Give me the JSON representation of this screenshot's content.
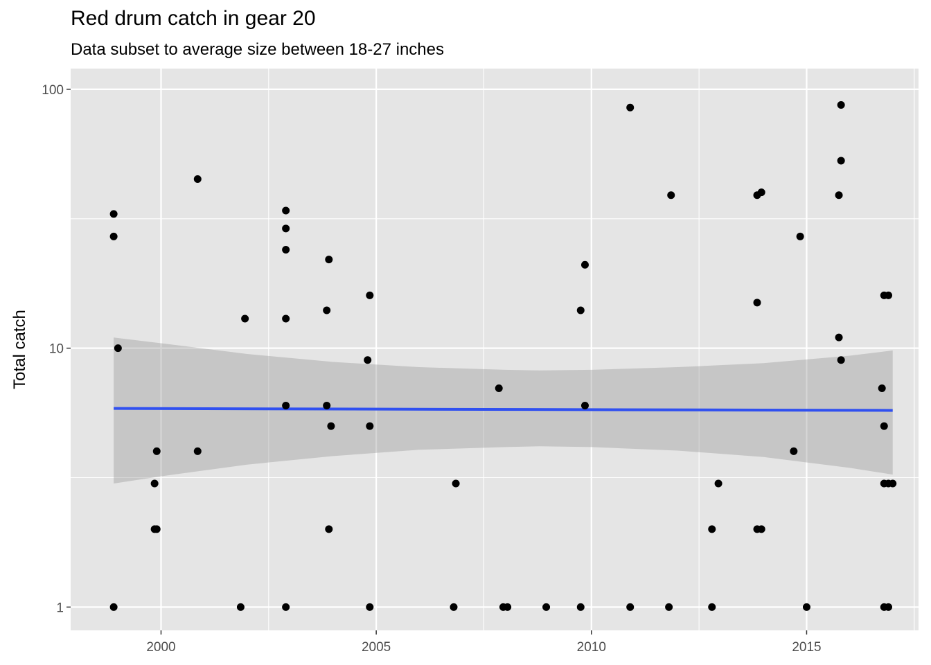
{
  "chart_data": {
    "type": "scatter",
    "title": "Red drum catch in gear 20",
    "subtitle": "Data subset to average size between 18-27 inches",
    "xlabel": "",
    "ylabel": "Total catch",
    "xlim": [
      1997.9,
      2017.6
    ],
    "ylim_log10": [
      -0.09,
      2.08
    ],
    "y_scale": "log10",
    "x_ticks": [
      2000,
      2005,
      2010,
      2015
    ],
    "x_tick_labels": [
      "2000",
      "2005",
      "2010",
      "2015"
    ],
    "y_ticks": [
      1,
      10,
      100
    ],
    "y_tick_labels": [
      "1",
      "10",
      "100"
    ],
    "grid": true,
    "colors": {
      "panel": "#e5e5e5",
      "grid": "#ffffff",
      "points": "#000000",
      "trend_line": "#3050f0",
      "ribbon": "#999999"
    },
    "trend": {
      "x": [
        1998.9,
        2017.0
      ],
      "y": [
        5.85,
        5.75
      ]
    },
    "confidence_band": {
      "x": [
        1998.9,
        2000,
        2002,
        2004,
        2006,
        2008,
        2008.8,
        2010,
        2012,
        2014,
        2016,
        2017.0
      ],
      "upper": [
        11.0,
        10.45,
        9.5,
        8.85,
        8.45,
        8.25,
        8.2,
        8.25,
        8.45,
        8.75,
        9.35,
        9.8
      ],
      "lower": [
        3.0,
        3.2,
        3.55,
        3.83,
        4.05,
        4.15,
        4.18,
        4.15,
        4.02,
        3.8,
        3.45,
        3.25
      ]
    },
    "points": [
      {
        "x": 1998.9,
        "y": 1
      },
      {
        "x": 1998.9,
        "y": 27
      },
      {
        "x": 1998.9,
        "y": 33
      },
      {
        "x": 1999.0,
        "y": 10
      },
      {
        "x": 1999.85,
        "y": 3
      },
      {
        "x": 1999.85,
        "y": 2
      },
      {
        "x": 1999.9,
        "y": 2
      },
      {
        "x": 1999.9,
        "y": 4
      },
      {
        "x": 2000.85,
        "y": 45
      },
      {
        "x": 2000.85,
        "y": 4
      },
      {
        "x": 2001.85,
        "y": 1
      },
      {
        "x": 2001.95,
        "y": 13
      },
      {
        "x": 2002.9,
        "y": 34
      },
      {
        "x": 2002.9,
        "y": 29
      },
      {
        "x": 2002.9,
        "y": 24
      },
      {
        "x": 2002.9,
        "y": 13
      },
      {
        "x": 2002.9,
        "y": 6
      },
      {
        "x": 2002.9,
        "y": 1
      },
      {
        "x": 2003.85,
        "y": 14
      },
      {
        "x": 2003.85,
        "y": 6
      },
      {
        "x": 2003.9,
        "y": 22
      },
      {
        "x": 2003.95,
        "y": 5
      },
      {
        "x": 2003.9,
        "y": 2
      },
      {
        "x": 2004.8,
        "y": 9
      },
      {
        "x": 2004.85,
        "y": 5
      },
      {
        "x": 2004.85,
        "y": 16
      },
      {
        "x": 2004.85,
        "y": 1
      },
      {
        "x": 2006.8,
        "y": 1
      },
      {
        "x": 2006.85,
        "y": 3
      },
      {
        "x": 2007.85,
        "y": 7
      },
      {
        "x": 2007.95,
        "y": 1
      },
      {
        "x": 2008.05,
        "y": 1
      },
      {
        "x": 2008.95,
        "y": 1
      },
      {
        "x": 2009.75,
        "y": 14
      },
      {
        "x": 2009.75,
        "y": 1
      },
      {
        "x": 2009.85,
        "y": 21
      },
      {
        "x": 2009.85,
        "y": 6
      },
      {
        "x": 2010.9,
        "y": 85
      },
      {
        "x": 2010.9,
        "y": 1
      },
      {
        "x": 2011.85,
        "y": 39
      },
      {
        "x": 2011.8,
        "y": 1
      },
      {
        "x": 2012.8,
        "y": 2
      },
      {
        "x": 2012.8,
        "y": 1
      },
      {
        "x": 2012.95,
        "y": 3
      },
      {
        "x": 2013.85,
        "y": 39
      },
      {
        "x": 2013.95,
        "y": 40
      },
      {
        "x": 2013.85,
        "y": 15
      },
      {
        "x": 2013.85,
        "y": 2
      },
      {
        "x": 2013.95,
        "y": 2
      },
      {
        "x": 2014.7,
        "y": 4
      },
      {
        "x": 2014.85,
        "y": 27
      },
      {
        "x": 2015.0,
        "y": 1
      },
      {
        "x": 2015.75,
        "y": 39
      },
      {
        "x": 2015.75,
        "y": 11
      },
      {
        "x": 2015.8,
        "y": 87
      },
      {
        "x": 2015.8,
        "y": 53
      },
      {
        "x": 2015.8,
        "y": 9
      },
      {
        "x": 2016.75,
        "y": 7
      },
      {
        "x": 2016.8,
        "y": 5
      },
      {
        "x": 2016.8,
        "y": 16
      },
      {
        "x": 2016.9,
        "y": 16
      },
      {
        "x": 2016.8,
        "y": 3
      },
      {
        "x": 2016.9,
        "y": 3
      },
      {
        "x": 2017.0,
        "y": 3
      },
      {
        "x": 2016.8,
        "y": 1
      },
      {
        "x": 2016.9,
        "y": 1
      }
    ]
  }
}
